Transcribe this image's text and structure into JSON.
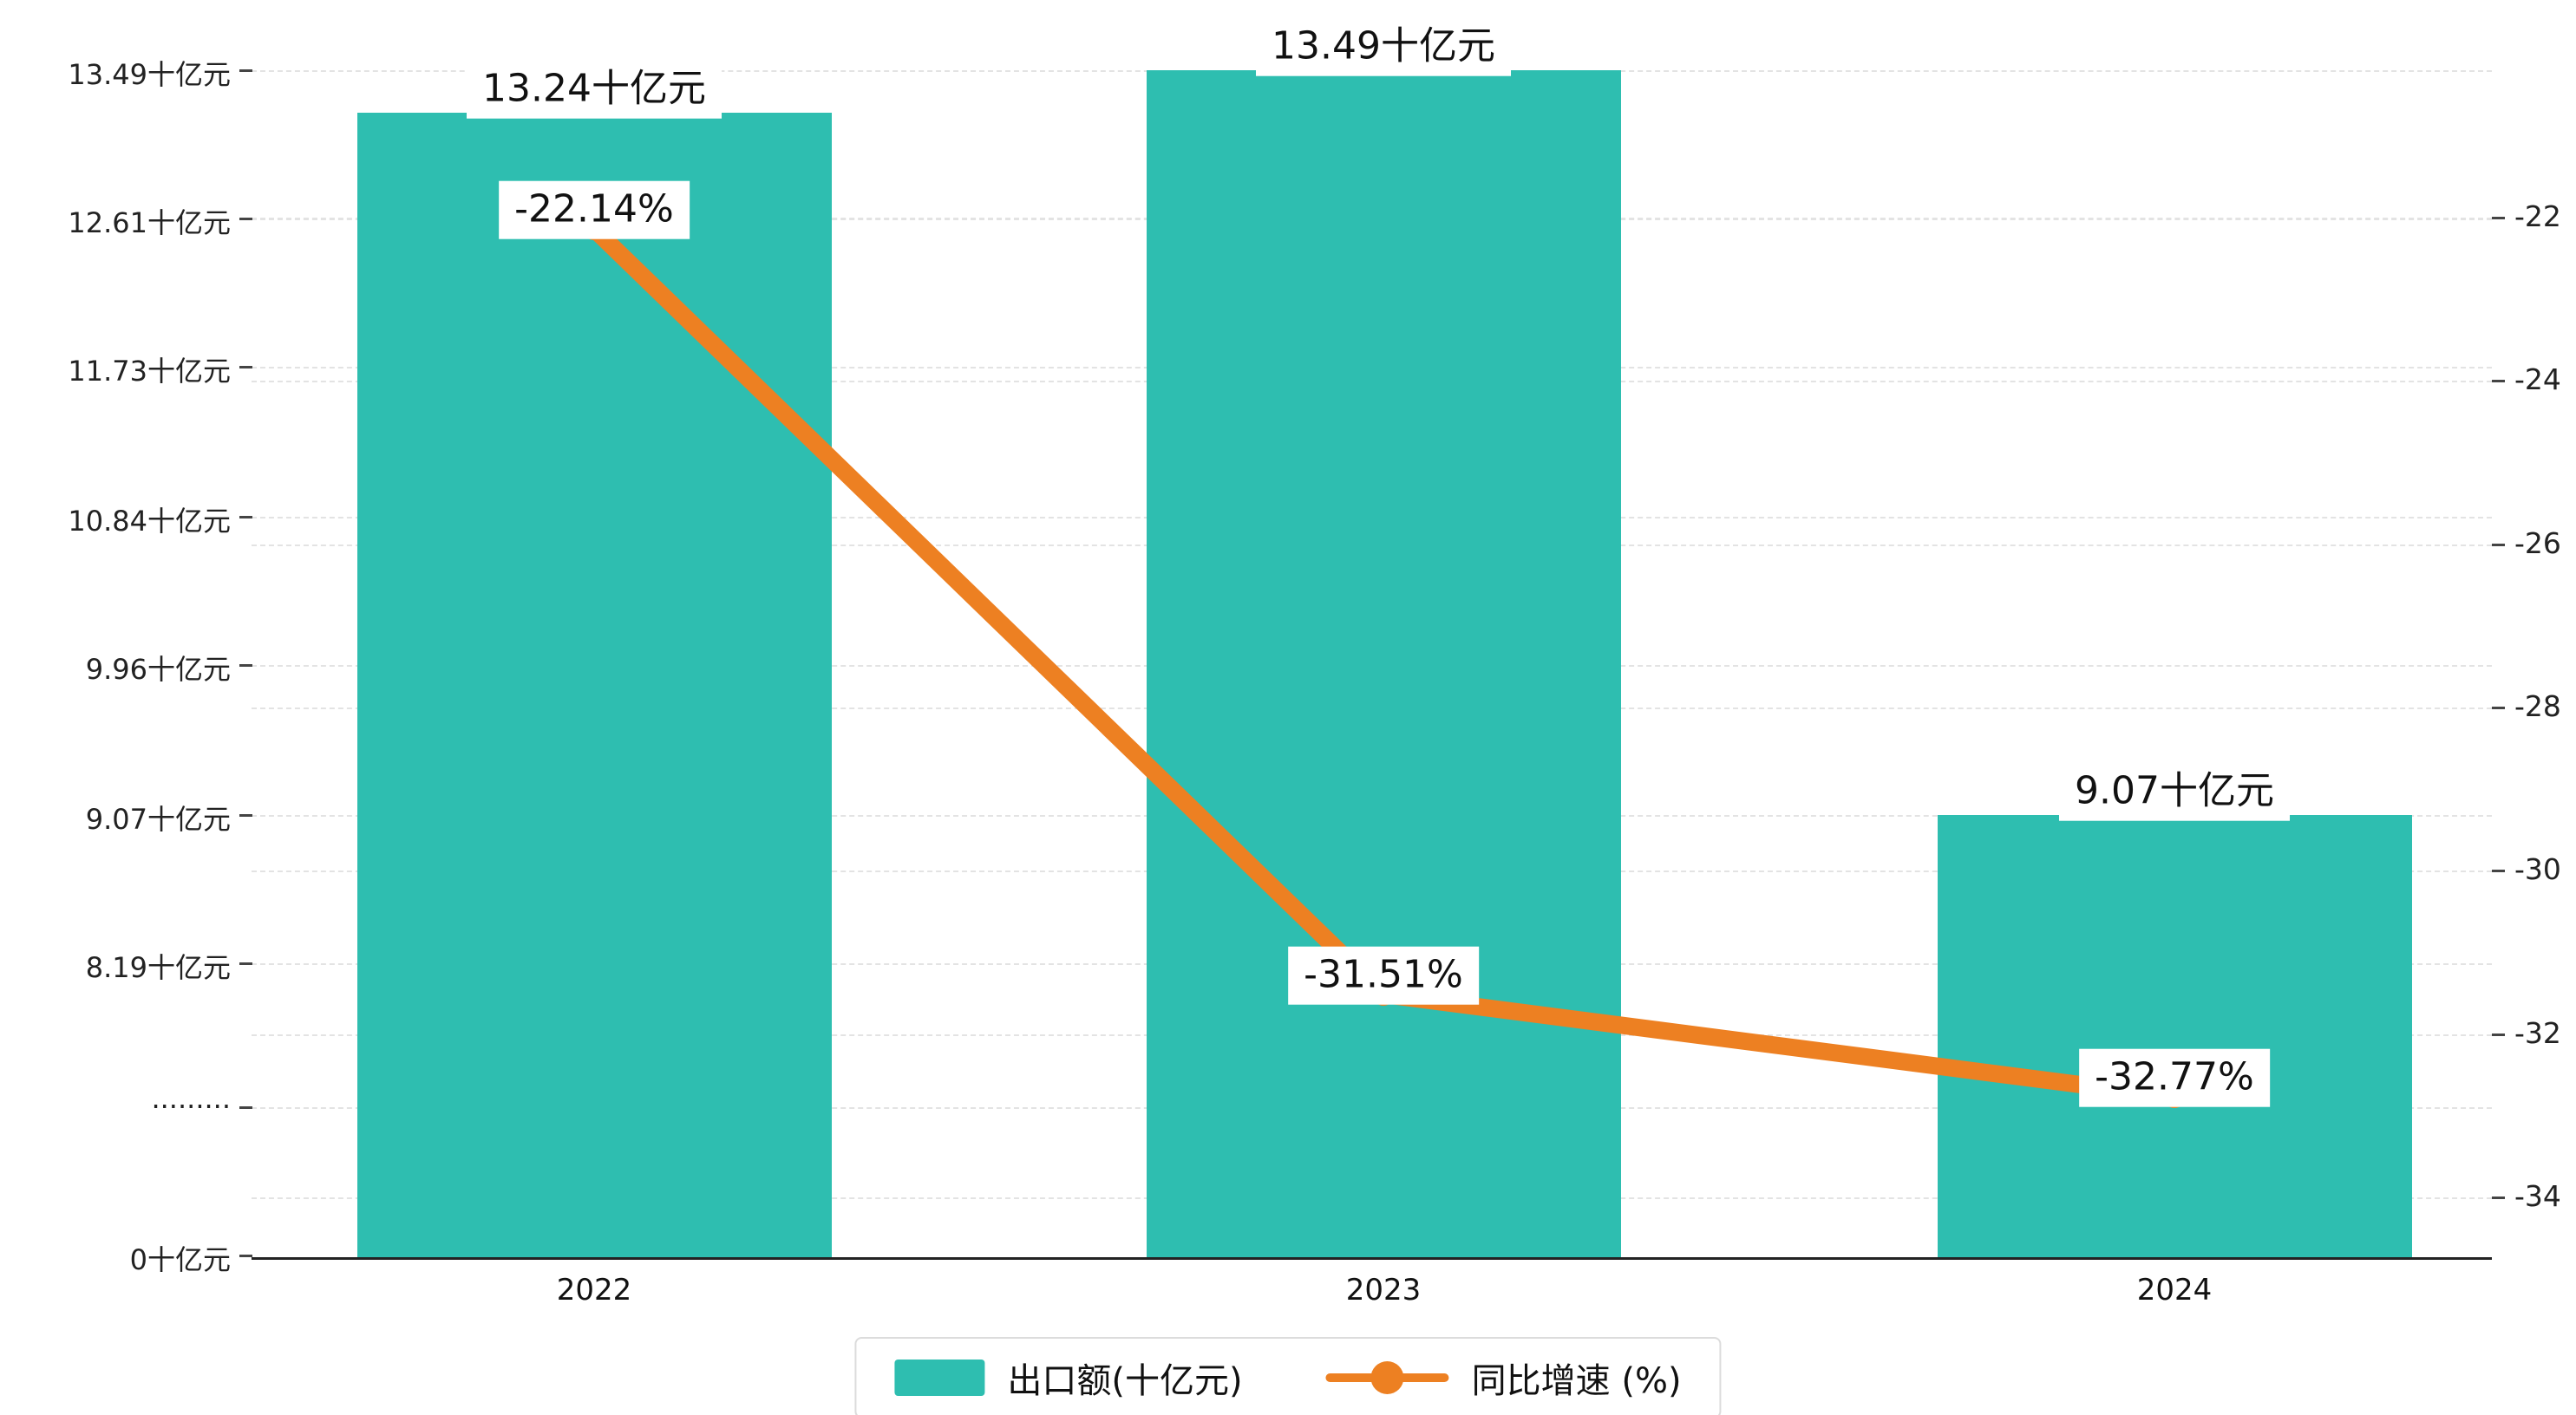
{
  "chart_data": {
    "type": "bar+line",
    "categories": [
      "2022",
      "2023",
      "2024"
    ],
    "series": [
      {
        "name": "出口额(十亿元)",
        "type": "bar",
        "values": [
          13.24,
          13.49,
          9.07
        ],
        "labels": [
          "13.24十亿元",
          "13.49十亿元",
          "9.07十亿元"
        ],
        "color": "#2EBEB0"
      },
      {
        "name": "同比增速 (%)",
        "type": "line",
        "values": [
          -22.14,
          -31.51,
          -32.77
        ],
        "labels": [
          "-22.14%",
          "-31.51%",
          "-32.77%"
        ],
        "color": "#ED8022"
      }
    ],
    "left_axis": {
      "unit": "十亿元",
      "ticks": [
        "13.49十亿元",
        "12.61十亿元",
        "11.73十亿元",
        "10.84十亿元",
        "9.96十亿元",
        "9.07十亿元",
        "8.19十亿元",
        "·········",
        "0十亿元"
      ],
      "tick_values": [
        13.49,
        12.61,
        11.73,
        10.84,
        9.96,
        9.07,
        8.19,
        null,
        0
      ],
      "broken_axis": true
    },
    "right_axis": {
      "ticks": [
        "-22",
        "-24",
        "-26",
        "-28",
        "-30",
        "-32",
        "-34"
      ],
      "tick_values": [
        -22,
        -24,
        -26,
        -28,
        -30,
        -32,
        -34
      ],
      "range": [
        -34,
        -22
      ]
    },
    "legend": [
      {
        "label": "出口额(十亿元)",
        "color": "#2EBEB0",
        "type": "bar"
      },
      {
        "label": "同比增速 (%)",
        "color": "#ED8022",
        "type": "line"
      }
    ],
    "grid": true,
    "title": ""
  }
}
